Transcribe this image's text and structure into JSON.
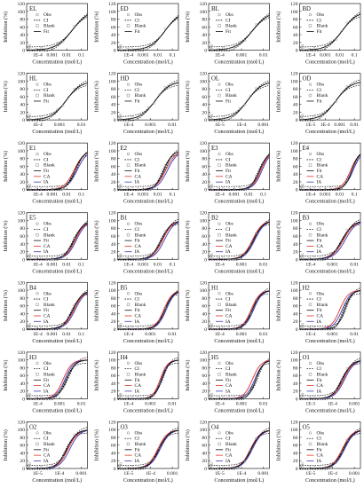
{
  "figure": {
    "y_axis_label": "Inhibition (%)",
    "x_axis_label": "Concentration (mol/L)",
    "y_ticks": [
      "0",
      "20",
      "40",
      "60",
      "80",
      "100",
      "120"
    ],
    "legend_labels": [
      "Obs",
      "CI",
      "Blank",
      "Fit",
      "CA",
      "IA"
    ],
    "colors": {
      "obs": "#9a9a9a",
      "fit": "#111111",
      "ci": "#111111",
      "ca": "#e0302a",
      "ia": "#3a3ab8"
    }
  },
  "chart_data": [
    {
      "type": "scatter",
      "title": "EL",
      "x_ticks": [
        "1E-4",
        "0.001",
        "0.01",
        "0.1"
      ],
      "ylim": [
        0,
        120
      ],
      "legend": [
        "Obs",
        "CI",
        "Blank",
        "Fit"
      ],
      "fit": {
        "c": 0.75,
        "s": 0.13,
        "top": 103
      },
      "ca": null,
      "ia": null
    },
    {
      "type": "scatter",
      "title": "ED",
      "x_ticks": [
        "1E-4",
        "0.001",
        "0.01",
        "0.1"
      ],
      "ylim": [
        0,
        120
      ],
      "legend": [
        "Obs",
        "CI",
        "Blank",
        "Fit"
      ],
      "fit": {
        "c": 0.78,
        "s": 0.12,
        "top": 100
      },
      "ca": null,
      "ia": null
    },
    {
      "type": "scatter",
      "title": "BL",
      "x_ticks": [
        "1E-4",
        "0.001",
        "0.01"
      ],
      "ylim": [
        0,
        120
      ],
      "legend": [
        "Obs",
        "CI",
        "Blank",
        "Fit"
      ],
      "fit": {
        "c": 0.72,
        "s": 0.13,
        "top": 100
      },
      "ca": null,
      "ia": null
    },
    {
      "type": "scatter",
      "title": "BD",
      "x_ticks": [
        "1E-4",
        "0.001",
        "0.01",
        "0.1"
      ],
      "ylim": [
        0,
        120
      ],
      "legend": [
        "Obs",
        "CI",
        "Blank",
        "Fit"
      ],
      "fit": {
        "c": 0.7,
        "s": 0.12,
        "top": 100
      },
      "ca": null,
      "ia": null
    },
    {
      "type": "scatter",
      "title": "HL",
      "x_ticks": [
        "1E-4",
        "0.001",
        "0.01"
      ],
      "ylim": [
        0,
        120
      ],
      "legend": [
        "Obs",
        "CI",
        "Blank",
        "Fit"
      ],
      "fit": {
        "c": 0.65,
        "s": 0.12,
        "top": 100
      },
      "ca": null,
      "ia": null
    },
    {
      "type": "scatter",
      "title": "HD",
      "x_ticks": [
        "1E-4",
        "0.001",
        "0.01"
      ],
      "ylim": [
        0,
        120
      ],
      "legend": [
        "Obs",
        "CI",
        "Blank",
        "Fit"
      ],
      "fit": {
        "c": 0.62,
        "s": 0.12,
        "top": 100
      },
      "ca": null,
      "ia": null
    },
    {
      "type": "scatter",
      "title": "OL",
      "x_ticks": [
        "1E-5",
        "1E-4",
        "0.001"
      ],
      "ylim": [
        0,
        120
      ],
      "legend": [
        "Obs",
        "CI",
        "Blank",
        "Fit"
      ],
      "fit": {
        "c": 0.64,
        "s": 0.12,
        "top": 100
      },
      "ca": null,
      "ia": null
    },
    {
      "type": "scatter",
      "title": "OD",
      "x_ticks": [
        "1E-5",
        "1E-4",
        "0.001",
        "0.01"
      ],
      "ylim": [
        0,
        120
      ],
      "legend": [
        "Obs",
        "CI",
        "Blank",
        "Fit"
      ],
      "fit": {
        "c": 0.6,
        "s": 0.12,
        "top": 100
      },
      "ca": null,
      "ia": null
    },
    {
      "type": "scatter",
      "title": "E1",
      "x_ticks": [
        "1E-4",
        "0.001",
        "0.01",
        "0.1"
      ],
      "ylim": [
        0,
        120
      ],
      "legend": [
        "Obs",
        "CI",
        "Blank",
        "Fit",
        "CA",
        "IA"
      ],
      "fit": {
        "c": 0.8,
        "s": 0.07,
        "top": 100
      },
      "ca": {
        "c": 0.78,
        "s": 0.08,
        "top": 100
      },
      "ia": {
        "c": 0.83,
        "s": 0.08,
        "top": 100
      }
    },
    {
      "type": "scatter",
      "title": "E2",
      "x_ticks": [
        "1E-4",
        "0.001",
        "0.01",
        "0.1"
      ],
      "ylim": [
        0,
        120
      ],
      "legend": [
        "Obs",
        "CI",
        "Blank",
        "Fit",
        "CA",
        "IA"
      ],
      "fit": {
        "c": 0.76,
        "s": 0.07,
        "top": 100
      },
      "ca": {
        "c": 0.79,
        "s": 0.08,
        "top": 100
      },
      "ia": {
        "c": 0.82,
        "s": 0.08,
        "top": 100
      }
    },
    {
      "type": "scatter",
      "title": "E3",
      "x_ticks": [
        "1E-4",
        "0.001",
        "0.01",
        "0.1"
      ],
      "ylim": [
        0,
        120
      ],
      "legend": [
        "Obs",
        "CI",
        "Blank",
        "Fit",
        "CA",
        "IA"
      ],
      "fit": {
        "c": 0.84,
        "s": 0.07,
        "top": 100
      },
      "ca": {
        "c": 0.86,
        "s": 0.07,
        "top": 100
      },
      "ia": {
        "c": 0.88,
        "s": 0.07,
        "top": 100
      }
    },
    {
      "type": "scatter",
      "title": "E4",
      "x_ticks": [
        "1E-4",
        "0.001",
        "0.01",
        "0.1"
      ],
      "ylim": [
        0,
        120
      ],
      "legend": [
        "Obs",
        "CI",
        "Blank",
        "Fit",
        "CA",
        "IA"
      ],
      "fit": {
        "c": 0.86,
        "s": 0.06,
        "top": 100
      },
      "ca": {
        "c": 0.84,
        "s": 0.07,
        "top": 100
      },
      "ia": {
        "c": 0.88,
        "s": 0.07,
        "top": 100
      }
    },
    {
      "type": "scatter",
      "title": "E5",
      "x_ticks": [
        "1E-4",
        "0.001",
        "0.01",
        "0.1"
      ],
      "ylim": [
        0,
        120
      ],
      "legend": [
        "Obs",
        "CI",
        "Blank",
        "Fit",
        "CA",
        "IA"
      ],
      "fit": {
        "c": 0.78,
        "s": 0.08,
        "top": 100
      },
      "ca": {
        "c": 0.8,
        "s": 0.08,
        "top": 100
      },
      "ia": {
        "c": 0.82,
        "s": 0.08,
        "top": 100
      }
    },
    {
      "type": "scatter",
      "title": "B1",
      "x_ticks": [
        "1E-4",
        "0.001",
        "0.01",
        "0.1"
      ],
      "ylim": [
        0,
        120
      ],
      "legend": [
        "Obs",
        "CI",
        "Blank",
        "Fit",
        "CA",
        "IA"
      ],
      "fit": {
        "c": 0.72,
        "s": 0.08,
        "top": 100
      },
      "ca": {
        "c": 0.74,
        "s": 0.08,
        "top": 100
      },
      "ia": {
        "c": 0.77,
        "s": 0.08,
        "top": 100
      }
    },
    {
      "type": "scatter",
      "title": "B2",
      "x_ticks": [
        "1E-4",
        "0.001",
        "0.01"
      ],
      "ylim": [
        0,
        120
      ],
      "legend": [
        "Obs",
        "CI",
        "Blank",
        "Fit",
        "CA",
        "IA"
      ],
      "fit": {
        "c": 0.74,
        "s": 0.08,
        "top": 100
      },
      "ca": {
        "c": 0.72,
        "s": 0.08,
        "top": 100
      },
      "ia": {
        "c": 0.76,
        "s": 0.08,
        "top": 100
      }
    },
    {
      "type": "scatter",
      "title": "B3",
      "x_ticks": [
        "1E-4",
        "0.001",
        "0.01"
      ],
      "ylim": [
        0,
        120
      ],
      "legend": [
        "Obs",
        "CI",
        "Blank",
        "Fit",
        "CA",
        "IA"
      ],
      "fit": {
        "c": 0.7,
        "s": 0.09,
        "top": 100
      },
      "ca": {
        "c": 0.72,
        "s": 0.09,
        "top": 100
      },
      "ia": {
        "c": 0.75,
        "s": 0.09,
        "top": 100
      }
    },
    {
      "type": "scatter",
      "title": "B4",
      "x_ticks": [
        "1E-4",
        "0.001",
        "0.01",
        "0.1"
      ],
      "ylim": [
        0,
        120
      ],
      "legend": [
        "Obs",
        "CI",
        "Blank",
        "Fit",
        "CA",
        "IA"
      ],
      "fit": {
        "c": 0.76,
        "s": 0.08,
        "top": 100
      },
      "ca": {
        "c": 0.78,
        "s": 0.08,
        "top": 100
      },
      "ia": {
        "c": 0.8,
        "s": 0.08,
        "top": 100
      }
    },
    {
      "type": "scatter",
      "title": "B5",
      "x_ticks": [
        "1E-4",
        "0.001",
        "0.01"
      ],
      "ylim": [
        0,
        120
      ],
      "legend": [
        "Obs",
        "CI",
        "Blank",
        "Fit",
        "CA",
        "IA"
      ],
      "fit": {
        "c": 0.78,
        "s": 0.07,
        "top": 100
      },
      "ca": {
        "c": 0.76,
        "s": 0.07,
        "top": 100
      },
      "ia": {
        "c": 0.8,
        "s": 0.07,
        "top": 100
      }
    },
    {
      "type": "scatter",
      "title": "H1",
      "x_ticks": [
        "1E-4",
        "0.001",
        "0.01"
      ],
      "ylim": [
        0,
        120
      ],
      "legend": [
        "Obs",
        "CI",
        "Blank",
        "Fit",
        "CA",
        "IA"
      ],
      "fit": {
        "c": 0.72,
        "s": 0.07,
        "top": 100
      },
      "ca": {
        "c": 0.7,
        "s": 0.07,
        "top": 100
      },
      "ia": {
        "c": 0.74,
        "s": 0.07,
        "top": 100
      }
    },
    {
      "type": "scatter",
      "title": "H2",
      "x_ticks": [
        "1E-4",
        "0.001",
        "0.01"
      ],
      "ylim": [
        0,
        120
      ],
      "legend": [
        "Obs",
        "CI",
        "Blank",
        "Fit",
        "CA",
        "IA"
      ],
      "fit": {
        "c": 0.74,
        "s": 0.06,
        "top": 100
      },
      "ca": {
        "c": 0.66,
        "s": 0.07,
        "top": 100
      },
      "ia": {
        "c": 0.7,
        "s": 0.07,
        "top": 100
      }
    },
    {
      "type": "scatter",
      "title": "H3",
      "x_ticks": [
        "1E-4",
        "0.001",
        "0.01"
      ],
      "ylim": [
        0,
        120
      ],
      "legend": [
        "Obs",
        "CI",
        "Blank",
        "Fit",
        "CA",
        "IA"
      ],
      "fit": {
        "c": 0.66,
        "s": 0.07,
        "top": 100
      },
      "ca": {
        "c": 0.6,
        "s": 0.07,
        "top": 100
      },
      "ia": {
        "c": 0.63,
        "s": 0.07,
        "top": 100
      }
    },
    {
      "type": "scatter",
      "title": "H4",
      "x_ticks": [
        "1E-4",
        "0.001",
        "0.01"
      ],
      "ylim": [
        0,
        120
      ],
      "legend": [
        "Obs",
        "CI",
        "Blank",
        "Fit",
        "CA",
        "IA"
      ],
      "fit": {
        "c": 0.72,
        "s": 0.06,
        "top": 100
      },
      "ca": {
        "c": 0.7,
        "s": 0.06,
        "top": 100
      },
      "ia": {
        "c": 0.73,
        "s": 0.06,
        "top": 100
      }
    },
    {
      "type": "scatter",
      "title": "H5",
      "x_ticks": [
        "1E-4",
        "0.001",
        "0.01"
      ],
      "ylim": [
        0,
        120
      ],
      "legend": [
        "Obs",
        "CI",
        "Blank",
        "Fit",
        "CA",
        "IA"
      ],
      "fit": {
        "c": 0.78,
        "s": 0.06,
        "top": 100
      },
      "ca": {
        "c": 0.72,
        "s": 0.07,
        "top": 100
      },
      "ia": {
        "c": 0.76,
        "s": 0.07,
        "top": 100
      }
    },
    {
      "type": "scatter",
      "title": "O1",
      "x_ticks": [
        "1E-5",
        "1E-4",
        "0.001"
      ],
      "ylim": [
        0,
        120
      ],
      "legend": [
        "Obs",
        "CI",
        "Blank",
        "Fit",
        "CA",
        "IA"
      ],
      "fit": {
        "c": 0.7,
        "s": 0.08,
        "top": 100
      },
      "ca": {
        "c": 0.72,
        "s": 0.08,
        "top": 100
      },
      "ia": {
        "c": 0.74,
        "s": 0.08,
        "top": 100
      }
    },
    {
      "type": "scatter",
      "title": "O2",
      "x_ticks": [
        "1E-5",
        "1E-4",
        "0.001"
      ],
      "ylim": [
        0,
        120
      ],
      "legend": [
        "Obs",
        "CI",
        "Blank",
        "Fit",
        "CA",
        "IA"
      ],
      "fit": {
        "c": 0.66,
        "s": 0.08,
        "top": 100
      },
      "ca": {
        "c": 0.68,
        "s": 0.08,
        "top": 100
      },
      "ia": {
        "c": 0.71,
        "s": 0.08,
        "top": 100
      }
    },
    {
      "type": "scatter",
      "title": "O3",
      "x_ticks": [
        "1E-5",
        "1E-4",
        "0.001"
      ],
      "ylim": [
        0,
        120
      ],
      "legend": [
        "Obs",
        "CI",
        "Blank",
        "Fit",
        "CA",
        "IA"
      ],
      "fit": {
        "c": 0.68,
        "s": 0.08,
        "top": 100
      },
      "ca": {
        "c": 0.66,
        "s": 0.08,
        "top": 100
      },
      "ia": {
        "c": 0.7,
        "s": 0.08,
        "top": 100
      }
    },
    {
      "type": "scatter",
      "title": "O4",
      "x_ticks": [
        "1E-5",
        "1E-4",
        "0.001"
      ],
      "ylim": [
        0,
        120
      ],
      "legend": [
        "Obs",
        "CI",
        "Blank",
        "Fit",
        "CA",
        "IA"
      ],
      "fit": {
        "c": 0.7,
        "s": 0.08,
        "top": 100
      },
      "ca": {
        "c": 0.69,
        "s": 0.08,
        "top": 100
      },
      "ia": {
        "c": 0.72,
        "s": 0.08,
        "top": 100
      }
    },
    {
      "type": "scatter",
      "title": "O5",
      "x_ticks": [
        "1E-5",
        "1E-4",
        "0.001"
      ],
      "ylim": [
        0,
        120
      ],
      "legend": [
        "Obs",
        "CI",
        "Blank",
        "Fit",
        "CA",
        "IA"
      ],
      "fit": {
        "c": 0.72,
        "s": 0.08,
        "top": 100
      },
      "ca": {
        "c": 0.7,
        "s": 0.08,
        "top": 100
      },
      "ia": {
        "c": 0.74,
        "s": 0.08,
        "top": 100
      }
    }
  ]
}
